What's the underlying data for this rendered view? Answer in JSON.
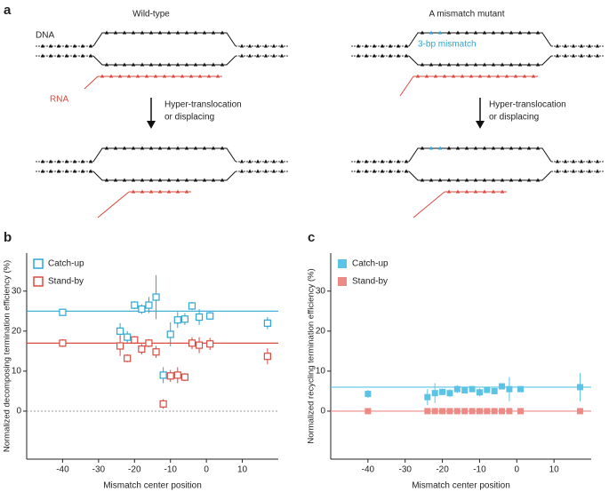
{
  "panel_a": {
    "label": "a",
    "left_title": "Wild-type",
    "right_title": "A mismatch mutant",
    "dna_label": "DNA",
    "rna_label": "RNA",
    "mismatch_label": "3-bp mismatch",
    "step_left": [
      "Hyper-translocation",
      "or displacing"
    ],
    "step_right": [
      "Hyper-translocation",
      "or displacing"
    ]
  },
  "chart_data": [
    {
      "type": "scatter",
      "label": "b",
      "x_label": "Mismatch center position",
      "y_label": "Normalized decomposing termination efficiency (%)",
      "x": [
        -40,
        -24,
        -22,
        -20,
        -18,
        -16,
        -14,
        -12,
        -10,
        -8,
        -6,
        -4,
        -2,
        1,
        17
      ],
      "xlim": [
        -50,
        20
      ],
      "ylim": [
        -12,
        39.5
      ],
      "xticks": [
        -40,
        -30,
        -20,
        -10,
        0,
        10
      ],
      "yticks": [
        0,
        10,
        20,
        30
      ],
      "zero_line": true,
      "marker": "open",
      "legend": "upper left",
      "series": [
        {
          "name": "Catch-up",
          "color": "#2aa7d6",
          "reference": 25,
          "values": [
            24.7,
            20,
            18.5,
            26.5,
            25.5,
            26.5,
            28.5,
            9,
            19.2,
            22.8,
            23,
            26.3,
            23.5,
            23.8,
            22
          ],
          "errors": [
            0.5,
            2,
            1.5,
            1,
            1.2,
            2,
            5.5,
            2,
            3,
            2,
            1.5,
            1,
            2,
            1,
            1.5
          ]
        },
        {
          "name": "Stand-by",
          "color": "#d94a3f",
          "reference": 17,
          "values": [
            17,
            16.3,
            13.2,
            17.8,
            15.5,
            17,
            14.8,
            1.8,
            8.8,
            9,
            8.5,
            17,
            16.5,
            16.8,
            13.7
          ],
          "errors": [
            1,
            2.5,
            1,
            1,
            1.3,
            1,
            1.5,
            1.2,
            1.5,
            2,
            1,
            1.5,
            2,
            1.5,
            2
          ]
        }
      ]
    },
    {
      "type": "scatter",
      "label": "c",
      "x_label": "Mismatch center position",
      "y_label": "Normalized recycling termination efficiency (%)",
      "x": [
        -40,
        -24,
        -22,
        -20,
        -18,
        -16,
        -14,
        -12,
        -10,
        -8,
        -6,
        -4,
        -2,
        1,
        17
      ],
      "xlim": [
        -50,
        20
      ],
      "ylim": [
        -12,
        39.5
      ],
      "xticks": [
        -40,
        -30,
        -20,
        -10,
        0,
        10
      ],
      "yticks": [
        0,
        10,
        20,
        30
      ],
      "zero_line": true,
      "marker": "filled",
      "legend": "upper left",
      "series": [
        {
          "name": "Catch-up",
          "color": "#5bc3e6",
          "reference": 6,
          "values": [
            4.3,
            3.5,
            4.5,
            4.8,
            4.5,
            5.5,
            5.2,
            5.5,
            4.7,
            5.3,
            5,
            6.2,
            5.5,
            5.5,
            6
          ],
          "errors": [
            1,
            2,
            2.5,
            0.8,
            1,
            1,
            0.5,
            0.8,
            1,
            0.8,
            0.8,
            0.5,
            3,
            0.5,
            3.5
          ]
        },
        {
          "name": "Stand-by",
          "color": "#ee8a85",
          "reference": 0,
          "values": [
            0,
            0,
            0,
            0,
            0,
            0,
            0,
            0,
            0,
            0,
            0,
            0,
            0,
            0,
            0
          ],
          "errors": [
            0,
            0,
            0,
            0,
            0,
            0,
            0,
            0,
            0,
            0,
            0,
            0,
            0,
            0,
            0
          ]
        }
      ]
    }
  ]
}
